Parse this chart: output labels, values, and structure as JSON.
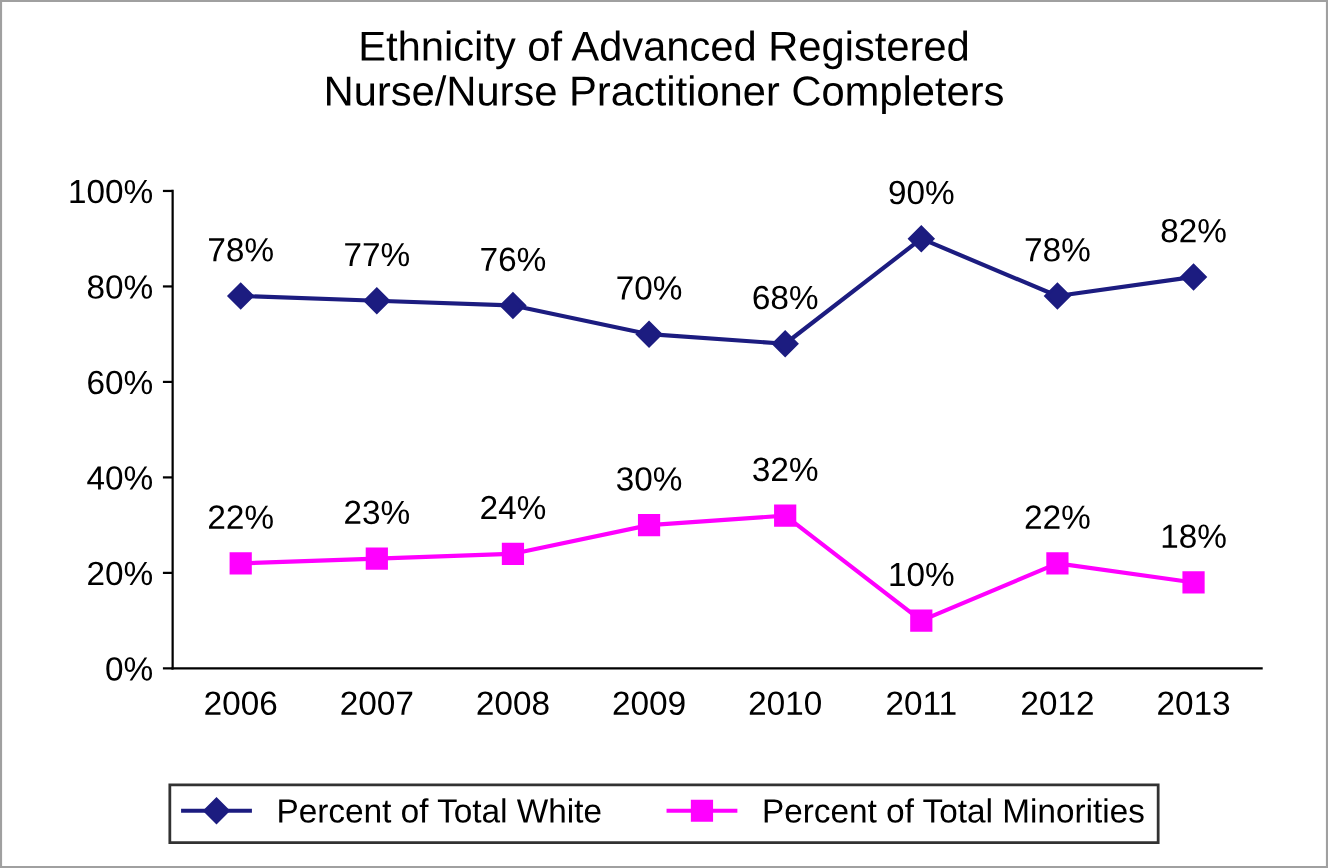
{
  "chart_data": {
    "type": "line",
    "title": "Ethnicity of Advanced Registered\nNurse/Nurse Practitioner Completers",
    "categories": [
      "2006",
      "2007",
      "2008",
      "2009",
      "2010",
      "2011",
      "2012",
      "2013"
    ],
    "series": [
      {
        "name": "Percent of Total White",
        "color": "#1c1c80",
        "marker": "diamond",
        "values": [
          78,
          77,
          76,
          70,
          68,
          90,
          78,
          82
        ],
        "value_labels": [
          "78%",
          "77%",
          "76%",
          "70%",
          "68%",
          "90%",
          "78%",
          "82%"
        ]
      },
      {
        "name": "Percent of Total Minorities",
        "color": "#ff00ff",
        "marker": "square",
        "values": [
          22,
          23,
          24,
          30,
          32,
          10,
          22,
          18
        ],
        "value_labels": [
          "22%",
          "23%",
          "24%",
          "30%",
          "32%",
          "10%",
          "22%",
          "18%"
        ]
      }
    ],
    "ylim": [
      0,
      100
    ],
    "yticks": [
      {
        "value": 0,
        "label": "0%"
      },
      {
        "value": 20,
        "label": "20%"
      },
      {
        "value": 40,
        "label": "40%"
      },
      {
        "value": 60,
        "label": "60%"
      },
      {
        "value": 80,
        "label": "80%"
      },
      {
        "value": 100,
        "label": "100%"
      }
    ],
    "grid": false,
    "legend": "bottom",
    "line_style": "solid"
  }
}
